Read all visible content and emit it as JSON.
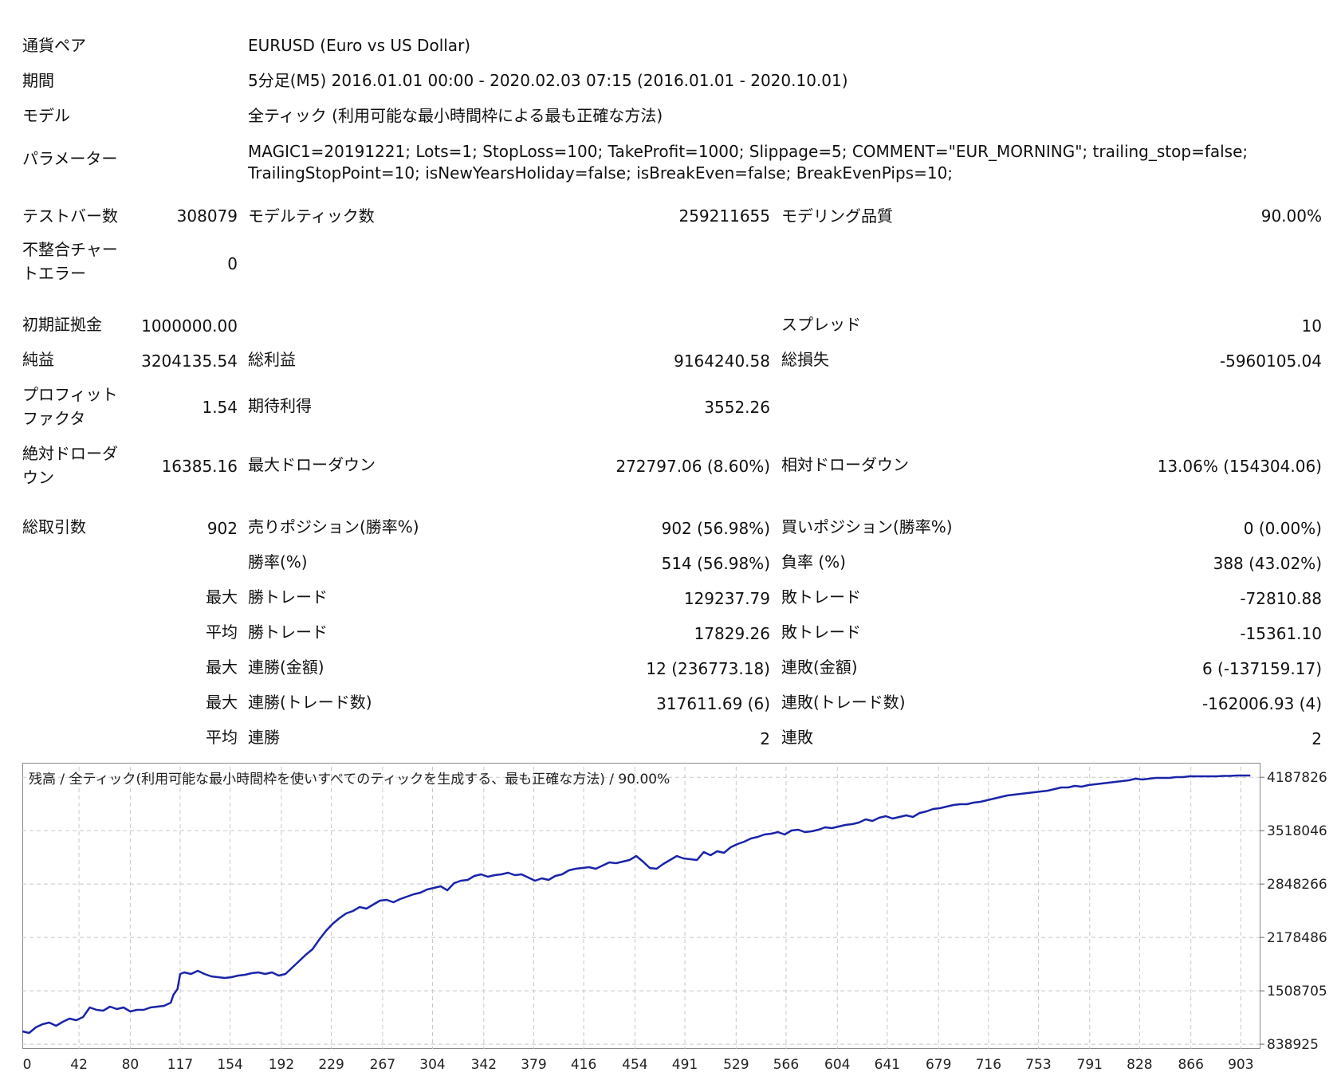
{
  "header": [
    {
      "label": "通貨ペア",
      "value": "EURUSD (Euro vs US Dollar)"
    },
    {
      "label": "期間",
      "value": "5分足(M5) 2016.01.01 00:00 - 2020.02.03 07:15 (2016.01.01 - 2020.10.01)"
    },
    {
      "label": "モデル",
      "value": "全ティック (利用可能な最小時間枠による最も正確な方法)"
    }
  ],
  "params": {
    "label": "パラメーター",
    "line1": "MAGIC1=20191221; Lots=1; StopLoss=100; TakeProfit=1000; Slippage=5; COMMENT=\"EUR_MORNING\"; trailing_stop=false;",
    "line2": "TrailingStopPoint=10; isNewYearsHoliday=false; isBreakEven=false; BreakEvenPips=10;"
  },
  "stats": {
    "test_bars_label": "テストバー数",
    "test_bars": "308079",
    "model_ticks_label": "モデルティック数",
    "model_ticks": "259211655",
    "modeling_quality_label": "モデリング品質",
    "modeling_quality": "90.00%",
    "mismatch_label_1": "不整合チャー",
    "mismatch_label_2": "トエラー",
    "mismatch": "0",
    "initial_deposit_label": "初期証拠金",
    "initial_deposit": "1000000.00",
    "spread_label": "スプレッド",
    "spread": "10",
    "net_profit_label": "純益",
    "net_profit": "3204135.54",
    "gross_profit_label": "総利益",
    "gross_profit": "9164240.58",
    "gross_loss_label": "総損失",
    "gross_loss": "-5960105.04",
    "profit_factor_label_1": "プロフィット",
    "profit_factor_label_2": "ファクタ",
    "profit_factor": "1.54",
    "expected_payoff_label": "期待利得",
    "expected_payoff": "3552.26",
    "abs_dd_label_1": "絶対ドローダ",
    "abs_dd_label_2": "ウン",
    "abs_dd": "16385.16",
    "max_dd_label": "最大ドローダウン",
    "max_dd": "272797.06 (8.60%)",
    "rel_dd_label": "相対ドローダウン",
    "rel_dd": "13.06% (154304.06)",
    "total_trades_label": "総取引数",
    "total_trades": "902",
    "short_label": "売りポジション(勝率%)",
    "short": "902 (56.98%)",
    "long_label": "買いポジション(勝率%)",
    "long": "0 (0.00%)",
    "win_rate_label": "勝率(%)",
    "win_rate": "514 (56.98%)",
    "loss_rate_label": "負率 (%)",
    "loss_rate": "388 (43.02%)",
    "max_label": "最大",
    "avg_label": "平均",
    "win_trade_label": "勝トレード",
    "loss_trade_label": "敗トレード",
    "max_win_trade": "129237.79",
    "max_loss_trade": "-72810.88",
    "avg_win_trade": "17829.26",
    "avg_loss_trade": "-15361.10",
    "cons_wins_money_label": "連勝(金額)",
    "cons_wins_money": "12 (236773.18)",
    "cons_losses_money_label": "連敗(金額)",
    "cons_losses_money": "6 (-137159.17)",
    "cons_wins_count_label": "連勝(トレード数)",
    "cons_wins_count": "317611.69 (6)",
    "cons_losses_count_label": "連敗(トレード数)",
    "cons_losses_count": "-162006.93 (4)",
    "avg_cons_wins_label": "連勝",
    "avg_cons_wins": "2",
    "avg_cons_losses_label": "連敗",
    "avg_cons_losses": "2"
  },
  "chart_title": "残高 / 全ティック(利用可能な最小時間枠を使いすべてのティックを生成する、最も正確な方法) / 90.00%",
  "chart_data": {
    "type": "line",
    "title": "残高 / 全ティック(利用可能な最小時間枠を使いすべてのティックを生成する、最も正確な方法) / 90.00%",
    "x_ticks": [
      0,
      42,
      80,
      117,
      154,
      192,
      229,
      267,
      304,
      342,
      379,
      416,
      454,
      491,
      529,
      566,
      604,
      641,
      679,
      716,
      753,
      791,
      828,
      866,
      903
    ],
    "y_ticks": [
      838925,
      1508705,
      2178486,
      2848266,
      3518046,
      4187826
    ],
    "xlim": [
      0,
      917
    ],
    "ylim": [
      780000,
      4340000
    ],
    "grid": true,
    "line_color": "#1a24a8",
    "series": [
      {
        "name": "",
        "points": [
          [
            0,
            1000000
          ],
          [
            5,
            980000
          ],
          [
            10,
            1050000
          ],
          [
            15,
            1090000
          ],
          [
            20,
            1110000
          ],
          [
            25,
            1070000
          ],
          [
            30,
            1120000
          ],
          [
            35,
            1160000
          ],
          [
            40,
            1140000
          ],
          [
            45,
            1180000
          ],
          [
            50,
            1300000
          ],
          [
            55,
            1270000
          ],
          [
            60,
            1260000
          ],
          [
            65,
            1310000
          ],
          [
            70,
            1280000
          ],
          [
            75,
            1300000
          ],
          [
            80,
            1250000
          ],
          [
            85,
            1270000
          ],
          [
            90,
            1270000
          ],
          [
            95,
            1300000
          ],
          [
            100,
            1310000
          ],
          [
            105,
            1320000
          ],
          [
            110,
            1360000
          ],
          [
            112,
            1460000
          ],
          [
            115,
            1530000
          ],
          [
            117,
            1720000
          ],
          [
            120,
            1740000
          ],
          [
            125,
            1720000
          ],
          [
            130,
            1760000
          ],
          [
            135,
            1720000
          ],
          [
            140,
            1690000
          ],
          [
            145,
            1680000
          ],
          [
            150,
            1670000
          ],
          [
            155,
            1680000
          ],
          [
            160,
            1700000
          ],
          [
            165,
            1710000
          ],
          [
            170,
            1730000
          ],
          [
            175,
            1740000
          ],
          [
            180,
            1720000
          ],
          [
            185,
            1740000
          ],
          [
            190,
            1700000
          ],
          [
            195,
            1720000
          ],
          [
            200,
            1800000
          ],
          [
            205,
            1880000
          ],
          [
            210,
            1960000
          ],
          [
            215,
            2030000
          ],
          [
            220,
            2150000
          ],
          [
            225,
            2260000
          ],
          [
            230,
            2350000
          ],
          [
            235,
            2420000
          ],
          [
            240,
            2480000
          ],
          [
            245,
            2510000
          ],
          [
            250,
            2560000
          ],
          [
            255,
            2540000
          ],
          [
            260,
            2590000
          ],
          [
            265,
            2640000
          ],
          [
            270,
            2650000
          ],
          [
            275,
            2620000
          ],
          [
            280,
            2660000
          ],
          [
            285,
            2690000
          ],
          [
            290,
            2720000
          ],
          [
            295,
            2740000
          ],
          [
            300,
            2780000
          ],
          [
            305,
            2800000
          ],
          [
            310,
            2820000
          ],
          [
            315,
            2770000
          ],
          [
            320,
            2860000
          ],
          [
            325,
            2890000
          ],
          [
            330,
            2900000
          ],
          [
            335,
            2950000
          ],
          [
            340,
            2970000
          ],
          [
            345,
            2940000
          ],
          [
            350,
            2960000
          ],
          [
            355,
            2970000
          ],
          [
            360,
            2990000
          ],
          [
            365,
            2960000
          ],
          [
            370,
            2970000
          ],
          [
            375,
            2930000
          ],
          [
            380,
            2890000
          ],
          [
            385,
            2920000
          ],
          [
            390,
            2900000
          ],
          [
            395,
            2950000
          ],
          [
            400,
            2970000
          ],
          [
            405,
            3020000
          ],
          [
            410,
            3040000
          ],
          [
            415,
            3050000
          ],
          [
            420,
            3060000
          ],
          [
            425,
            3040000
          ],
          [
            430,
            3080000
          ],
          [
            435,
            3120000
          ],
          [
            440,
            3110000
          ],
          [
            445,
            3130000
          ],
          [
            450,
            3150000
          ],
          [
            455,
            3200000
          ],
          [
            460,
            3130000
          ],
          [
            465,
            3050000
          ],
          [
            470,
            3040000
          ],
          [
            475,
            3100000
          ],
          [
            480,
            3150000
          ],
          [
            485,
            3200000
          ],
          [
            490,
            3170000
          ],
          [
            495,
            3160000
          ],
          [
            500,
            3150000
          ],
          [
            505,
            3250000
          ],
          [
            510,
            3210000
          ],
          [
            515,
            3260000
          ],
          [
            520,
            3240000
          ],
          [
            525,
            3310000
          ],
          [
            530,
            3350000
          ],
          [
            535,
            3380000
          ],
          [
            540,
            3420000
          ],
          [
            545,
            3440000
          ],
          [
            550,
            3470000
          ],
          [
            555,
            3480000
          ],
          [
            560,
            3500000
          ],
          [
            565,
            3470000
          ],
          [
            570,
            3520000
          ],
          [
            575,
            3530000
          ],
          [
            580,
            3500000
          ],
          [
            585,
            3510000
          ],
          [
            590,
            3530000
          ],
          [
            595,
            3560000
          ],
          [
            600,
            3550000
          ],
          [
            605,
            3570000
          ],
          [
            610,
            3590000
          ],
          [
            615,
            3600000
          ],
          [
            620,
            3620000
          ],
          [
            625,
            3660000
          ],
          [
            630,
            3640000
          ],
          [
            635,
            3680000
          ],
          [
            640,
            3700000
          ],
          [
            645,
            3670000
          ],
          [
            650,
            3690000
          ],
          [
            655,
            3710000
          ],
          [
            660,
            3690000
          ],
          [
            665,
            3740000
          ],
          [
            670,
            3760000
          ],
          [
            675,
            3790000
          ],
          [
            680,
            3800000
          ],
          [
            685,
            3820000
          ],
          [
            690,
            3840000
          ],
          [
            695,
            3850000
          ],
          [
            700,
            3850000
          ],
          [
            705,
            3870000
          ],
          [
            710,
            3880000
          ],
          [
            715,
            3900000
          ],
          [
            720,
            3920000
          ],
          [
            725,
            3940000
          ],
          [
            730,
            3960000
          ],
          [
            735,
            3970000
          ],
          [
            740,
            3980000
          ],
          [
            745,
            3990000
          ],
          [
            750,
            4000000
          ],
          [
            755,
            4010000
          ],
          [
            760,
            4020000
          ],
          [
            765,
            4040000
          ],
          [
            770,
            4060000
          ],
          [
            775,
            4060000
          ],
          [
            780,
            4080000
          ],
          [
            785,
            4070000
          ],
          [
            790,
            4090000
          ],
          [
            795,
            4100000
          ],
          [
            800,
            4110000
          ],
          [
            805,
            4120000
          ],
          [
            810,
            4130000
          ],
          [
            815,
            4140000
          ],
          [
            820,
            4150000
          ],
          [
            825,
            4170000
          ],
          [
            830,
            4160000
          ],
          [
            835,
            4170000
          ],
          [
            840,
            4180000
          ],
          [
            845,
            4180000
          ],
          [
            850,
            4180000
          ],
          [
            855,
            4190000
          ],
          [
            860,
            4190000
          ],
          [
            865,
            4200000
          ],
          [
            870,
            4200000
          ],
          [
            875,
            4200000
          ],
          [
            880,
            4200000
          ],
          [
            885,
            4200000
          ],
          [
            890,
            4205000
          ],
          [
            895,
            4205000
          ],
          [
            900,
            4210000
          ],
          [
            905,
            4210000
          ],
          [
            910,
            4210000
          ]
        ]
      }
    ]
  }
}
